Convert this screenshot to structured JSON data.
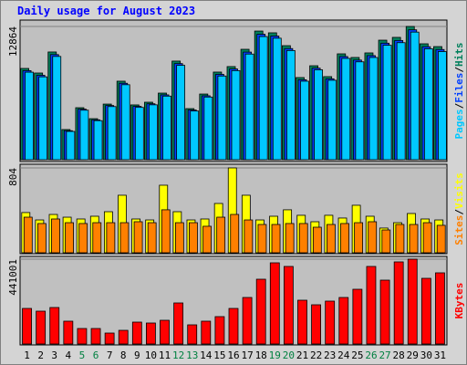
{
  "chart_data": {
    "type": "bar",
    "title": "Daily usage for August 2023",
    "categories": [
      "1",
      "2",
      "3",
      "4",
      "5",
      "6",
      "7",
      "8",
      "9",
      "10",
      "11",
      "12",
      "13",
      "14",
      "15",
      "16",
      "17",
      "18",
      "19",
      "20",
      "21",
      "22",
      "23",
      "24",
      "25",
      "26",
      "27",
      "28",
      "29",
      "30",
      "31"
    ],
    "category_colors": [
      "#000000",
      "#000000",
      "#000000",
      "#000000",
      "#008040",
      "#008040",
      "#000000",
      "#000000",
      "#000000",
      "#000000",
      "#000000",
      "#008040",
      "#008040",
      "#000000",
      "#000000",
      "#000000",
      "#000000",
      "#000000",
      "#008040",
      "#008040",
      "#000000",
      "#000000",
      "#000000",
      "#000000",
      "#000000",
      "#008040",
      "#008040",
      "#000000",
      "#000000",
      "#000000",
      "#000000"
    ],
    "panels": [
      {
        "ylim": [
          0,
          12864
        ],
        "yticks": [
          12864
        ],
        "series": [
          {
            "name": "Hits",
            "color": "#00805c",
            "values": [
              8810,
              8370,
              10400,
              2910,
              5020,
              3960,
              5370,
              7580,
              5290,
              5550,
              6430,
              9520,
              4930,
              6340,
              8460,
              8990,
              10660,
              12420,
              12250,
              11010,
              7930,
              9070,
              8020,
              10220,
              9870,
              10310,
              11540,
              11810,
              12864,
              11190,
              10920
            ]
          },
          {
            "name": "Files",
            "color": "#0040ff",
            "values": [
              8600,
              8150,
              10150,
              2800,
              4880,
              3850,
              5230,
              7380,
              5150,
              5400,
              6260,
              9280,
              4800,
              6170,
              8240,
              8760,
              10390,
              12110,
              11940,
              10730,
              7720,
              8840,
              7810,
              9960,
              9620,
              10050,
              11250,
              11510,
              12540,
              10910,
              10640
            ]
          },
          {
            "name": "Pages",
            "color": "#00c8ff",
            "values": [
              8450,
              8000,
              9970,
              2730,
              4780,
              3770,
              5130,
              7240,
              5050,
              5300,
              6140,
              9110,
              4700,
              6050,
              8080,
              8600,
              10200,
              11890,
              11730,
              10540,
              7580,
              8680,
              7670,
              9780,
              9450,
              9870,
              11050,
              11300,
              12320,
              10710,
              10440
            ]
          }
        ]
      },
      {
        "ylim": [
          0,
          804
        ],
        "yticks": [
          804
        ],
        "series": [
          {
            "name": "Visits",
            "color": "#ffff00",
            "values": [
              381,
              311,
              363,
              337,
              320,
              346,
              389,
              545,
              320,
              311,
              640,
              389,
              311,
              320,
              467,
              804,
              545,
              311,
              346,
              407,
              355,
              294,
              355,
              329,
              450,
              346,
              234,
              285,
              372,
              320,
              311
            ]
          },
          {
            "name": "Sites",
            "color": "#ff8000",
            "values": [
              337,
              277,
              320,
              285,
              277,
              285,
              285,
              285,
              294,
              285,
              407,
              285,
              285,
              251,
              337,
              363,
              311,
              268,
              268,
              277,
              277,
              242,
              268,
              277,
              285,
              294,
              216,
              268,
              268,
              285,
              260
            ]
          }
        ]
      },
      {
        "ylim": [
          0,
          441001
        ],
        "yticks": [
          441001
        ],
        "series": [
          {
            "name": "KBytes",
            "color": "#ff0000",
            "values": [
              184900,
              170700,
              189700,
              118600,
              80600,
              80600,
              56900,
              71100,
              113800,
              109100,
              123300,
              213400,
              99600,
              118600,
              142300,
              184900,
              241800,
              336700,
              422000,
              403100,
              227600,
              203900,
              222900,
              241800,
              284500,
              403100,
              331900,
              426800,
              441001,
              341400,
              369900
            ]
          }
        ]
      }
    ]
  }
}
